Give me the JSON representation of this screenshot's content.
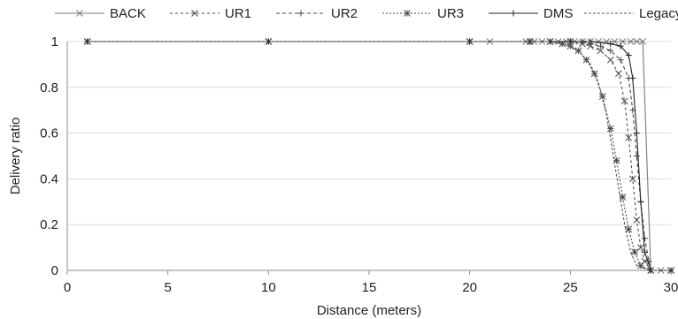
{
  "chart_data": {
    "type": "line",
    "title": "",
    "xlabel": "Distance (meters)",
    "ylabel": "Delivery ratio",
    "xlim": [
      0,
      30
    ],
    "ylim": [
      0,
      1
    ],
    "x_ticks": [
      "0",
      "5",
      "10",
      "15",
      "20",
      "25",
      "30"
    ],
    "y_ticks": [
      "0",
      "0.2",
      "0.4",
      "0.6",
      "0.8",
      "1"
    ],
    "grid": "horizontal",
    "legend_position": "top",
    "series": [
      {
        "name": "BACK",
        "color": "#7a7a7a",
        "dash": "solid",
        "marker": "x",
        "points": [
          [
            1,
            1
          ],
          [
            10,
            1
          ],
          [
            20,
            1
          ],
          [
            21,
            1
          ],
          [
            22.8,
            1
          ],
          [
            23.2,
            1
          ],
          [
            23.6,
            1
          ],
          [
            24,
            1
          ],
          [
            24.4,
            1
          ],
          [
            24.8,
            1
          ],
          [
            25.2,
            1
          ],
          [
            25.6,
            1
          ],
          [
            26,
            1
          ],
          [
            26.4,
            1
          ],
          [
            26.8,
            1
          ],
          [
            27.2,
            1
          ],
          [
            27.6,
            1
          ],
          [
            28,
            1
          ],
          [
            28.3,
            1
          ],
          [
            28.6,
            1
          ],
          [
            29,
            0
          ],
          [
            29.5,
            0
          ],
          [
            30,
            0
          ]
        ]
      },
      {
        "name": "UR1",
        "color": "#4a4a4a",
        "dash": "3,3",
        "marker": "x",
        "points": [
          [
            1,
            1
          ],
          [
            10,
            1
          ],
          [
            20,
            1
          ],
          [
            23,
            1
          ],
          [
            24,
            1
          ],
          [
            25,
            1
          ],
          [
            25.6,
            0.99
          ],
          [
            26,
            0.98
          ],
          [
            26.5,
            0.96
          ],
          [
            27,
            0.92
          ],
          [
            27.4,
            0.86
          ],
          [
            27.7,
            0.74
          ],
          [
            27.9,
            0.58
          ],
          [
            28.1,
            0.4
          ],
          [
            28.3,
            0.22
          ],
          [
            28.5,
            0.1
          ],
          [
            28.7,
            0.04
          ],
          [
            29,
            0
          ],
          [
            30,
            0
          ]
        ]
      },
      {
        "name": "UR2",
        "color": "#4a4a4a",
        "dash": "4,3",
        "marker": "plus",
        "points": [
          [
            1,
            1
          ],
          [
            10,
            1
          ],
          [
            20,
            1
          ],
          [
            23,
            1
          ],
          [
            24,
            1
          ],
          [
            25,
            1
          ],
          [
            25.6,
            1
          ],
          [
            26,
            0.99
          ],
          [
            26.5,
            0.98
          ],
          [
            27,
            0.96
          ],
          [
            27.5,
            0.92
          ],
          [
            27.9,
            0.84
          ],
          [
            28.1,
            0.7
          ],
          [
            28.3,
            0.5
          ],
          [
            28.5,
            0.3
          ],
          [
            28.7,
            0.14
          ],
          [
            28.9,
            0.04
          ],
          [
            29,
            0
          ],
          [
            30,
            0
          ]
        ]
      },
      {
        "name": "UR3",
        "color": "#4a4a4a",
        "dash": "2,2",
        "marker": "star",
        "points": [
          [
            1,
            1
          ],
          [
            10,
            1
          ],
          [
            20,
            1
          ],
          [
            23,
            1
          ],
          [
            24,
            1
          ],
          [
            24.6,
            0.99
          ],
          [
            25,
            0.98
          ],
          [
            25.4,
            0.96
          ],
          [
            25.8,
            0.92
          ],
          [
            26.2,
            0.86
          ],
          [
            26.6,
            0.76
          ],
          [
            27,
            0.62
          ],
          [
            27.3,
            0.48
          ],
          [
            27.6,
            0.32
          ],
          [
            27.9,
            0.18
          ],
          [
            28.2,
            0.08
          ],
          [
            28.5,
            0.02
          ],
          [
            29,
            0
          ],
          [
            30,
            0
          ]
        ]
      },
      {
        "name": "DMS",
        "color": "#222222",
        "dash": "solid",
        "marker": "plus",
        "points": [
          [
            1,
            1
          ],
          [
            10,
            1
          ],
          [
            20,
            1
          ],
          [
            23,
            1
          ],
          [
            24,
            1
          ],
          [
            25,
            1
          ],
          [
            26,
            1
          ],
          [
            27,
            0.99
          ],
          [
            27.5,
            0.98
          ],
          [
            27.9,
            0.94
          ],
          [
            28.1,
            0.84
          ],
          [
            28.3,
            0.6
          ],
          [
            28.5,
            0.3
          ],
          [
            28.7,
            0.08
          ],
          [
            29,
            0
          ],
          [
            30,
            0
          ]
        ]
      },
      {
        "name": "Legacy",
        "color": "#555555",
        "dash": "3,2",
        "marker": "none",
        "points": [
          [
            1,
            1
          ],
          [
            20,
            1
          ],
          [
            24,
            1
          ],
          [
            25,
            0.98
          ],
          [
            25.5,
            0.95
          ],
          [
            26,
            0.9
          ],
          [
            26.4,
            0.82
          ],
          [
            26.8,
            0.68
          ],
          [
            27.1,
            0.52
          ],
          [
            27.4,
            0.36
          ],
          [
            27.7,
            0.2
          ],
          [
            28,
            0.08
          ],
          [
            28.3,
            0.02
          ],
          [
            29,
            0
          ],
          [
            30,
            0
          ]
        ]
      }
    ]
  }
}
